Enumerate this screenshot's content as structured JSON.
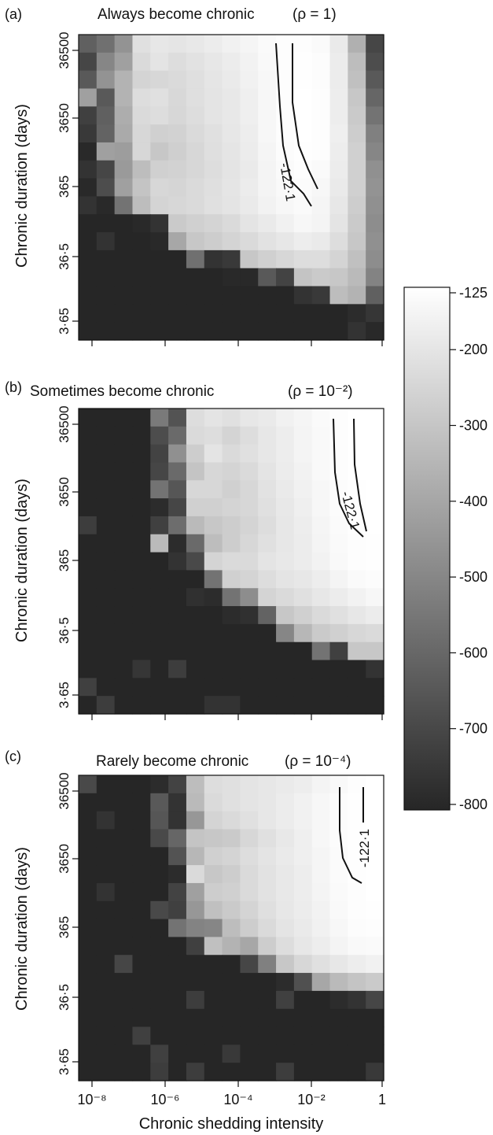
{
  "colorbar": {
    "ticks": [
      "-125",
      "-200",
      "-300",
      "-400",
      "-500",
      "-600",
      "-700",
      "-800"
    ]
  },
  "chart_data": [
    {
      "type": "heatmap",
      "panel_label": "(a)",
      "title": "Always become chronic",
      "rho_text": "(ρ = 1)",
      "xlabel": "",
      "ylabel": "Chronic duration (days)",
      "yticks": [
        "36500",
        "3650",
        "365",
        "36·5",
        "3·65"
      ],
      "xticks": [],
      "contour": {
        "label": "-122·1",
        "value": -122.1
      },
      "rows": 17,
      "cols": 17,
      "grid_layout": "rows top (36500 days) to bottom (3·65 days), columns left (1e-8) to right (1)",
      "values": [
        [
          -620,
          -570,
          -460,
          -220,
          -200,
          -205,
          -195,
          -185,
          -170,
          -155,
          -140,
          -130,
          -130,
          -140,
          -190,
          -370,
          -700
        ],
        [
          -700,
          -500,
          -420,
          -240,
          -210,
          -230,
          -215,
          -200,
          -185,
          -165,
          -145,
          -130,
          -128,
          -135,
          -185,
          -330,
          -680
        ],
        [
          -640,
          -460,
          -360,
          -260,
          -250,
          -240,
          -225,
          -205,
          -190,
          -170,
          -150,
          -130,
          -127,
          -135,
          -185,
          -320,
          -640
        ],
        [
          -420,
          -640,
          -360,
          -230,
          -220,
          -245,
          -225,
          -210,
          -195,
          -175,
          -150,
          -130,
          -126,
          -130,
          -180,
          -300,
          -600
        ],
        [
          -720,
          -620,
          -380,
          -240,
          -230,
          -250,
          -230,
          -210,
          -195,
          -175,
          -150,
          -130,
          -126,
          -130,
          -180,
          -290,
          -560
        ],
        [
          -740,
          -610,
          -390,
          -250,
          -270,
          -265,
          -240,
          -220,
          -200,
          -180,
          -150,
          -130,
          -126,
          -130,
          -175,
          -280,
          -520
        ],
        [
          -790,
          -420,
          -430,
          -250,
          -300,
          -275,
          -250,
          -225,
          -205,
          -185,
          -155,
          -135,
          -127,
          -132,
          -180,
          -270,
          -500
        ],
        [
          -760,
          -700,
          -440,
          -330,
          -270,
          -265,
          -250,
          -230,
          -210,
          -190,
          -160,
          -140,
          -130,
          -140,
          -185,
          -270,
          -470
        ],
        [
          -790,
          -680,
          -420,
          -310,
          -250,
          -255,
          -240,
          -225,
          -205,
          -185,
          -160,
          -145,
          -138,
          -150,
          -190,
          -270,
          -460
        ],
        [
          -760,
          -790,
          -560,
          -330,
          -260,
          -250,
          -240,
          -220,
          -210,
          -190,
          -165,
          -150,
          -140,
          -155,
          -200,
          -280,
          -470
        ],
        [
          -800,
          -800,
          -800,
          -790,
          -760,
          -290,
          -270,
          -260,
          -240,
          -210,
          -190,
          -170,
          -150,
          -160,
          -210,
          -290,
          -480
        ],
        [
          -800,
          -760,
          -800,
          -800,
          -790,
          -400,
          -300,
          -280,
          -260,
          -240,
          -215,
          -200,
          -180,
          -190,
          -230,
          -300,
          -470
        ],
        [
          -800,
          -800,
          -800,
          -800,
          -800,
          -800,
          -570,
          -760,
          -740,
          -300,
          -270,
          -250,
          -230,
          -230,
          -260,
          -320,
          -480
        ],
        [
          -800,
          -800,
          -800,
          -800,
          -800,
          -800,
          -800,
          -800,
          -790,
          -790,
          -640,
          -710,
          -310,
          -290,
          -300,
          -340,
          -510
        ],
        [
          -800,
          -800,
          -800,
          -800,
          -800,
          -800,
          -800,
          -800,
          -800,
          -800,
          -800,
          -800,
          -760,
          -740,
          -330,
          -360,
          -620
        ],
        [
          -800,
          -800,
          -800,
          -800,
          -800,
          -800,
          -800,
          -800,
          -800,
          -800,
          -800,
          -800,
          -800,
          -800,
          -800,
          -780,
          -750
        ],
        [
          -800,
          -800,
          -800,
          -800,
          -800,
          -800,
          -800,
          -800,
          -800,
          -800,
          -800,
          -800,
          -800,
          -800,
          -800,
          -760,
          -790
        ]
      ]
    },
    {
      "type": "heatmap",
      "panel_label": "(b)",
      "title": "Sometimes become chronic",
      "rho_text": "(ρ = 10⁻²)",
      "xlabel": "",
      "ylabel": "Chronic duration (days)",
      "yticks": [
        "36500",
        "3650",
        "365",
        "36·5",
        "3·65"
      ],
      "xticks": [],
      "contour": {
        "label": "-122·1",
        "value": -122.1
      },
      "rows": 17,
      "cols": 17,
      "grid_layout": "rows top (36500 days) to bottom (3·65 days), columns left (1e-8) to right (1)",
      "values": [
        [
          -800,
          -800,
          -800,
          -800,
          -540,
          -660,
          -230,
          -210,
          -220,
          -200,
          -190,
          -170,
          -155,
          -140,
          -130,
          -126,
          -125
        ],
        [
          -800,
          -800,
          -800,
          -800,
          -680,
          -590,
          -240,
          -230,
          -260,
          -230,
          -200,
          -180,
          -160,
          -145,
          -132,
          -126,
          -125
        ],
        [
          -800,
          -800,
          -800,
          -800,
          -710,
          -470,
          -280,
          -210,
          -240,
          -220,
          -200,
          -180,
          -160,
          -145,
          -132,
          -126,
          -125
        ],
        [
          -800,
          -800,
          -800,
          -800,
          -700,
          -590,
          -310,
          -250,
          -260,
          -240,
          -210,
          -185,
          -165,
          -145,
          -132,
          -126,
          -125
        ],
        [
          -800,
          -800,
          -800,
          -800,
          -560,
          -650,
          -250,
          -250,
          -270,
          -250,
          -215,
          -190,
          -170,
          -150,
          -134,
          -127,
          -125
        ],
        [
          -800,
          -800,
          -800,
          -800,
          -780,
          -700,
          -270,
          -270,
          -260,
          -250,
          -220,
          -195,
          -175,
          -150,
          -135,
          -128,
          -126
        ],
        [
          -730,
          -800,
          -800,
          -800,
          -720,
          -580,
          -340,
          -300,
          -280,
          -260,
          -230,
          -200,
          -180,
          -155,
          -137,
          -128,
          -126
        ],
        [
          -800,
          -800,
          -800,
          -800,
          -340,
          -780,
          -590,
          -330,
          -280,
          -250,
          -220,
          -200,
          -185,
          -160,
          -140,
          -130,
          -127
        ],
        [
          -800,
          -800,
          -800,
          -800,
          -800,
          -760,
          -690,
          -260,
          -240,
          -240,
          -210,
          -195,
          -185,
          -165,
          -145,
          -132,
          -128
        ],
        [
          -800,
          -800,
          -800,
          -800,
          -800,
          -800,
          -800,
          -560,
          -270,
          -260,
          -230,
          -210,
          -200,
          -180,
          -160,
          -140,
          -135
        ],
        [
          -800,
          -800,
          -800,
          -800,
          -800,
          -800,
          -770,
          -780,
          -560,
          -480,
          -260,
          -240,
          -220,
          -200,
          -185,
          -165,
          -150
        ],
        [
          -800,
          -800,
          -800,
          -800,
          -800,
          -800,
          -800,
          -800,
          -780,
          -770,
          -610,
          -300,
          -270,
          -240,
          -220,
          -200,
          -185
        ],
        [
          -800,
          -800,
          -800,
          -800,
          -800,
          -800,
          -800,
          -800,
          -800,
          -800,
          -800,
          -500,
          -350,
          -290,
          -270,
          -250,
          -240
        ],
        [
          -800,
          -800,
          -800,
          -800,
          -800,
          -800,
          -800,
          -800,
          -800,
          -800,
          -800,
          -800,
          -800,
          -560,
          -720,
          -300,
          -300
        ],
        [
          -800,
          -800,
          -800,
          -750,
          -800,
          -730,
          -800,
          -800,
          -800,
          -800,
          -800,
          -800,
          -800,
          -800,
          -800,
          -800,
          -760
        ],
        [
          -720,
          -800,
          -800,
          -800,
          -800,
          -800,
          -800,
          -800,
          -800,
          -800,
          -800,
          -800,
          -800,
          -800,
          -800,
          -800,
          -800
        ],
        [
          -800,
          -730,
          -800,
          -800,
          -800,
          -800,
          -800,
          -760,
          -760,
          -800,
          -800,
          -800,
          -800,
          -800,
          -800,
          -800,
          -800
        ]
      ]
    },
    {
      "type": "heatmap",
      "panel_label": "(c)",
      "title": "Rarely become chronic",
      "rho_text": "(ρ = 10⁻⁴)",
      "xlabel": "Chronic shedding intensity",
      "ylabel": "Chronic duration (days)",
      "yticks": [
        "36500",
        "3650",
        "365",
        "36·5",
        "3·65"
      ],
      "xticks": [
        "10⁻⁸",
        "10⁻⁶",
        "10⁻⁴",
        "10⁻²",
        "1"
      ],
      "contour": {
        "label": "-122·1",
        "value": -122.1
      },
      "rows": 17,
      "cols": 17,
      "grid_layout": "rows top (36500 days) to bottom (3·65 days), columns left (1e-8) to right (1)",
      "values": [
        [
          -690,
          -800,
          -800,
          -800,
          -780,
          -710,
          -330,
          -230,
          -220,
          -210,
          -200,
          -190,
          -180,
          -160,
          -145,
          -132,
          -126
        ],
        [
          -800,
          -800,
          -800,
          -800,
          -640,
          -760,
          -340,
          -240,
          -220,
          -210,
          -200,
          -185,
          -170,
          -150,
          -135,
          -128,
          -125
        ],
        [
          -800,
          -760,
          -800,
          -800,
          -650,
          -760,
          -450,
          -260,
          -240,
          -220,
          -200,
          -185,
          -170,
          -150,
          -135,
          -128,
          -125
        ],
        [
          -800,
          -800,
          -800,
          -800,
          -690,
          -600,
          -310,
          -300,
          -290,
          -250,
          -220,
          -195,
          -175,
          -150,
          -135,
          -128,
          -125
        ],
        [
          -800,
          -800,
          -800,
          -800,
          -800,
          -660,
          -350,
          -270,
          -260,
          -230,
          -210,
          -190,
          -175,
          -155,
          -137,
          -128,
          -125
        ],
        [
          -800,
          -800,
          -800,
          -800,
          -800,
          -780,
          -240,
          -300,
          -280,
          -240,
          -215,
          -195,
          -180,
          -155,
          -138,
          -129,
          -125
        ],
        [
          -800,
          -760,
          -800,
          -800,
          -800,
          -710,
          -420,
          -280,
          -270,
          -240,
          -215,
          -195,
          -180,
          -160,
          -140,
          -130,
          -126
        ],
        [
          -800,
          -800,
          -800,
          -800,
          -690,
          -720,
          -450,
          -320,
          -290,
          -260,
          -225,
          -200,
          -185,
          -165,
          -145,
          -132,
          -127
        ],
        [
          -800,
          -800,
          -800,
          -800,
          -800,
          -560,
          -510,
          -500,
          -330,
          -280,
          -240,
          -210,
          -190,
          -170,
          -150,
          -135,
          -130
        ],
        [
          -800,
          -800,
          -800,
          -800,
          -800,
          -800,
          -720,
          -320,
          -360,
          -400,
          -280,
          -230,
          -200,
          -180,
          -160,
          -145,
          -140
        ],
        [
          -800,
          -800,
          -700,
          -800,
          -800,
          -800,
          -800,
          -800,
          -800,
          -700,
          -520,
          -300,
          -250,
          -220,
          -200,
          -180,
          -170
        ],
        [
          -800,
          -800,
          -800,
          -800,
          -800,
          -800,
          -800,
          -800,
          -800,
          -800,
          -800,
          -780,
          -670,
          -400,
          -340,
          -310,
          -290
        ],
        [
          -800,
          -800,
          -800,
          -800,
          -800,
          -800,
          -730,
          -800,
          -800,
          -800,
          -800,
          -720,
          -800,
          -800,
          -780,
          -760,
          -700
        ],
        [
          -800,
          -800,
          -800,
          -800,
          -800,
          -800,
          -800,
          -800,
          -800,
          -800,
          -800,
          -800,
          -800,
          -800,
          -800,
          -800,
          -800
        ],
        [
          -800,
          -800,
          -800,
          -720,
          -800,
          -800,
          -800,
          -800,
          -800,
          -800,
          -800,
          -800,
          -800,
          -800,
          -800,
          -800,
          -800
        ],
        [
          -800,
          -800,
          -800,
          -800,
          -720,
          -800,
          -800,
          -800,
          -740,
          -800,
          -800,
          -800,
          -800,
          -800,
          -800,
          -800,
          -800
        ],
        [
          -800,
          -800,
          -800,
          -800,
          -730,
          -800,
          -730,
          -800,
          -800,
          -800,
          -800,
          -730,
          -800,
          -800,
          -800,
          -800,
          -740
        ]
      ]
    }
  ]
}
